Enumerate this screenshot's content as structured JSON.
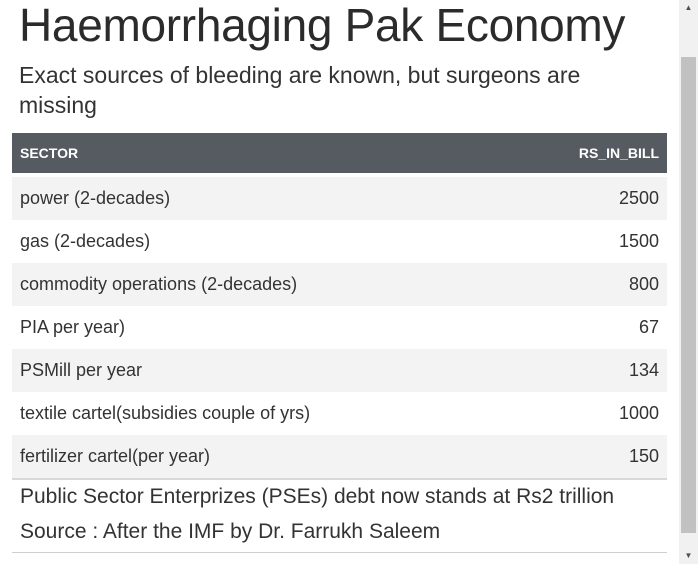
{
  "title": "Haemorrhaging Pak Economy",
  "subtitle": "Exact sources of bleeding are known, but surgeons are missing",
  "table": {
    "headers": [
      "SECTOR",
      "RS_IN_BILL"
    ],
    "rows": [
      {
        "sector": "power (2-decades)",
        "value": "2500"
      },
      {
        "sector": "gas (2-decades)",
        "value": "1500"
      },
      {
        "sector": "commodity operations (2-decades)",
        "value": "800"
      },
      {
        "sector": "PIA per year)",
        "value": "67"
      },
      {
        "sector": "PSMill per year",
        "value": "134"
      },
      {
        "sector": "textile cartel(subsidies couple of yrs)",
        "value": "1000"
      },
      {
        "sector": "fertilizer cartel(per year)",
        "value": "150"
      }
    ]
  },
  "footer": {
    "line1": "Public Sector Enterprizes (PSEs) debt now stands at Rs2 trillion",
    "line2": "Source : After the IMF by Dr. Farrukh Saleem"
  },
  "scrollbar": {
    "up_icon": "triangle-up",
    "down_icon": "triangle-down",
    "up_glyph": "▲",
    "down_glyph": "▼"
  },
  "colors": {
    "header_bg": "#565b62",
    "header_text": "#ffffff",
    "stripe": "#f3f3f3"
  }
}
